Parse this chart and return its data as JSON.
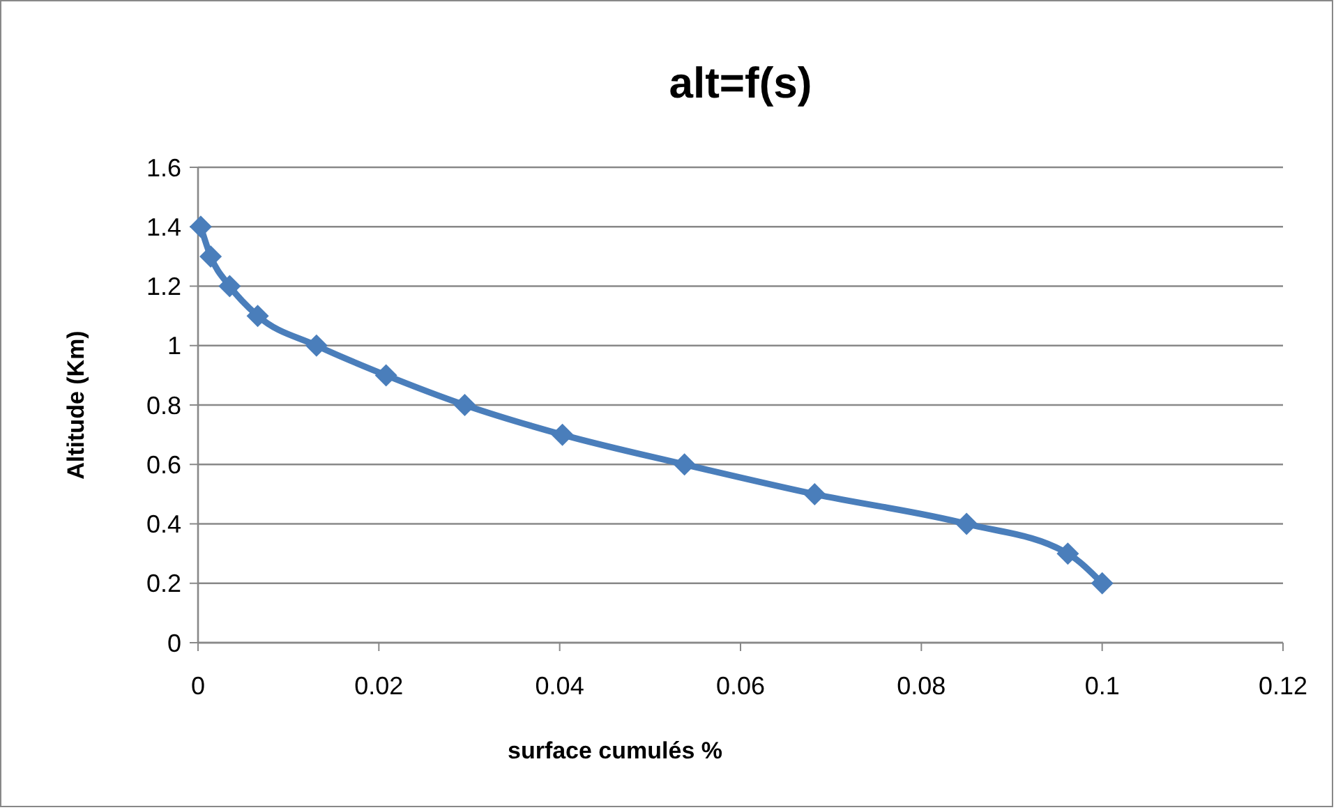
{
  "chart_data": {
    "type": "line",
    "title": "alt=f(s)",
    "xlabel": "surface cumulés %",
    "ylabel": "Altitude (Km)",
    "x": [
      0.0003,
      0.0014,
      0.0035,
      0.0066,
      0.0131,
      0.0208,
      0.0295,
      0.0403,
      0.0538,
      0.0682,
      0.085,
      0.0962,
      0.1
    ],
    "series": [
      {
        "color": "#4a7ebb",
        "values": [
          1.4,
          1.3,
          1.2,
          1.1,
          1.0,
          0.9,
          0.8,
          0.7,
          0.6,
          0.5,
          0.4,
          0.3,
          0.2
        ]
      }
    ],
    "xlim": [
      0,
      0.12
    ],
    "xticks": [
      0,
      0.02,
      0.04,
      0.06,
      0.08,
      0.1,
      0.12
    ],
    "ylim": [
      0,
      1.6
    ],
    "yticks": [
      0,
      0.2,
      0.4,
      0.6,
      0.8,
      1,
      1.2,
      1.4,
      1.6
    ],
    "grid": "y",
    "marker": "diamond",
    "line_style": "solid"
  }
}
